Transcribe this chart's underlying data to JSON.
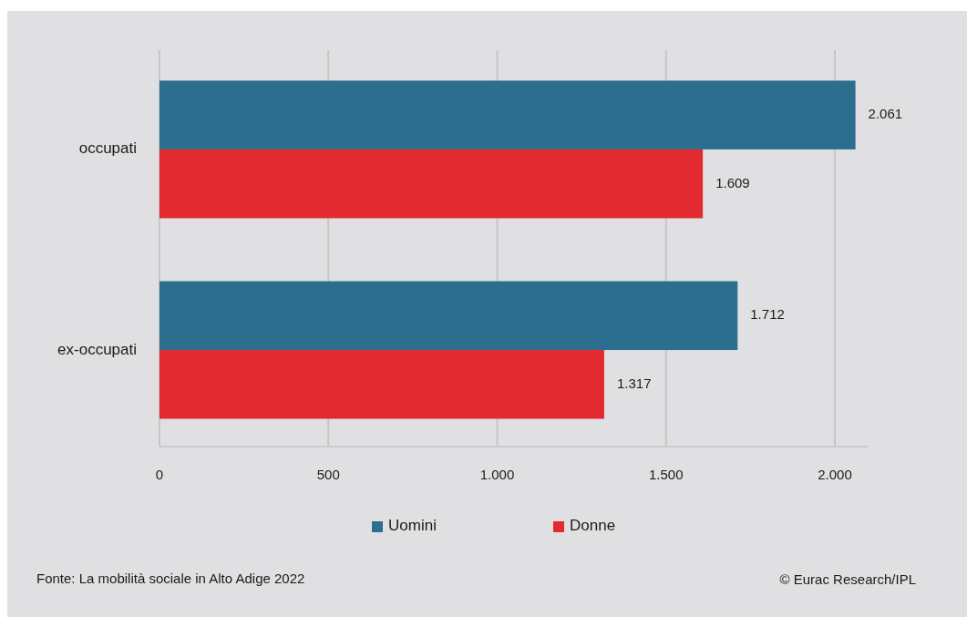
{
  "chart_data": {
    "type": "bar",
    "orientation": "horizontal",
    "categories": [
      "occupati",
      "ex-occupati"
    ],
    "series": [
      {
        "name": "Uomini",
        "color": "#2c6e8e",
        "values": [
          2061,
          1712
        ],
        "value_labels": [
          "2.061",
          "1.712"
        ]
      },
      {
        "name": "Donne",
        "color": "#e32a30",
        "values": [
          1609,
          1317
        ],
        "value_labels": [
          "1.609",
          "1.317"
        ]
      }
    ],
    "xlim": [
      0,
      2100
    ],
    "xticks": [
      0,
      500,
      {
        "value": 1000,
        "label": "1.000"
      },
      {
        "value": 1500,
        "label": "1.500"
      },
      {
        "value": 2000,
        "label": "2.000"
      }
    ],
    "grid": "x",
    "legend": "bottom",
    "annotations": [
      "Fonte: La mobilità sociale in Alto Adige 2022",
      "© Eurac Research/IPL"
    ]
  }
}
